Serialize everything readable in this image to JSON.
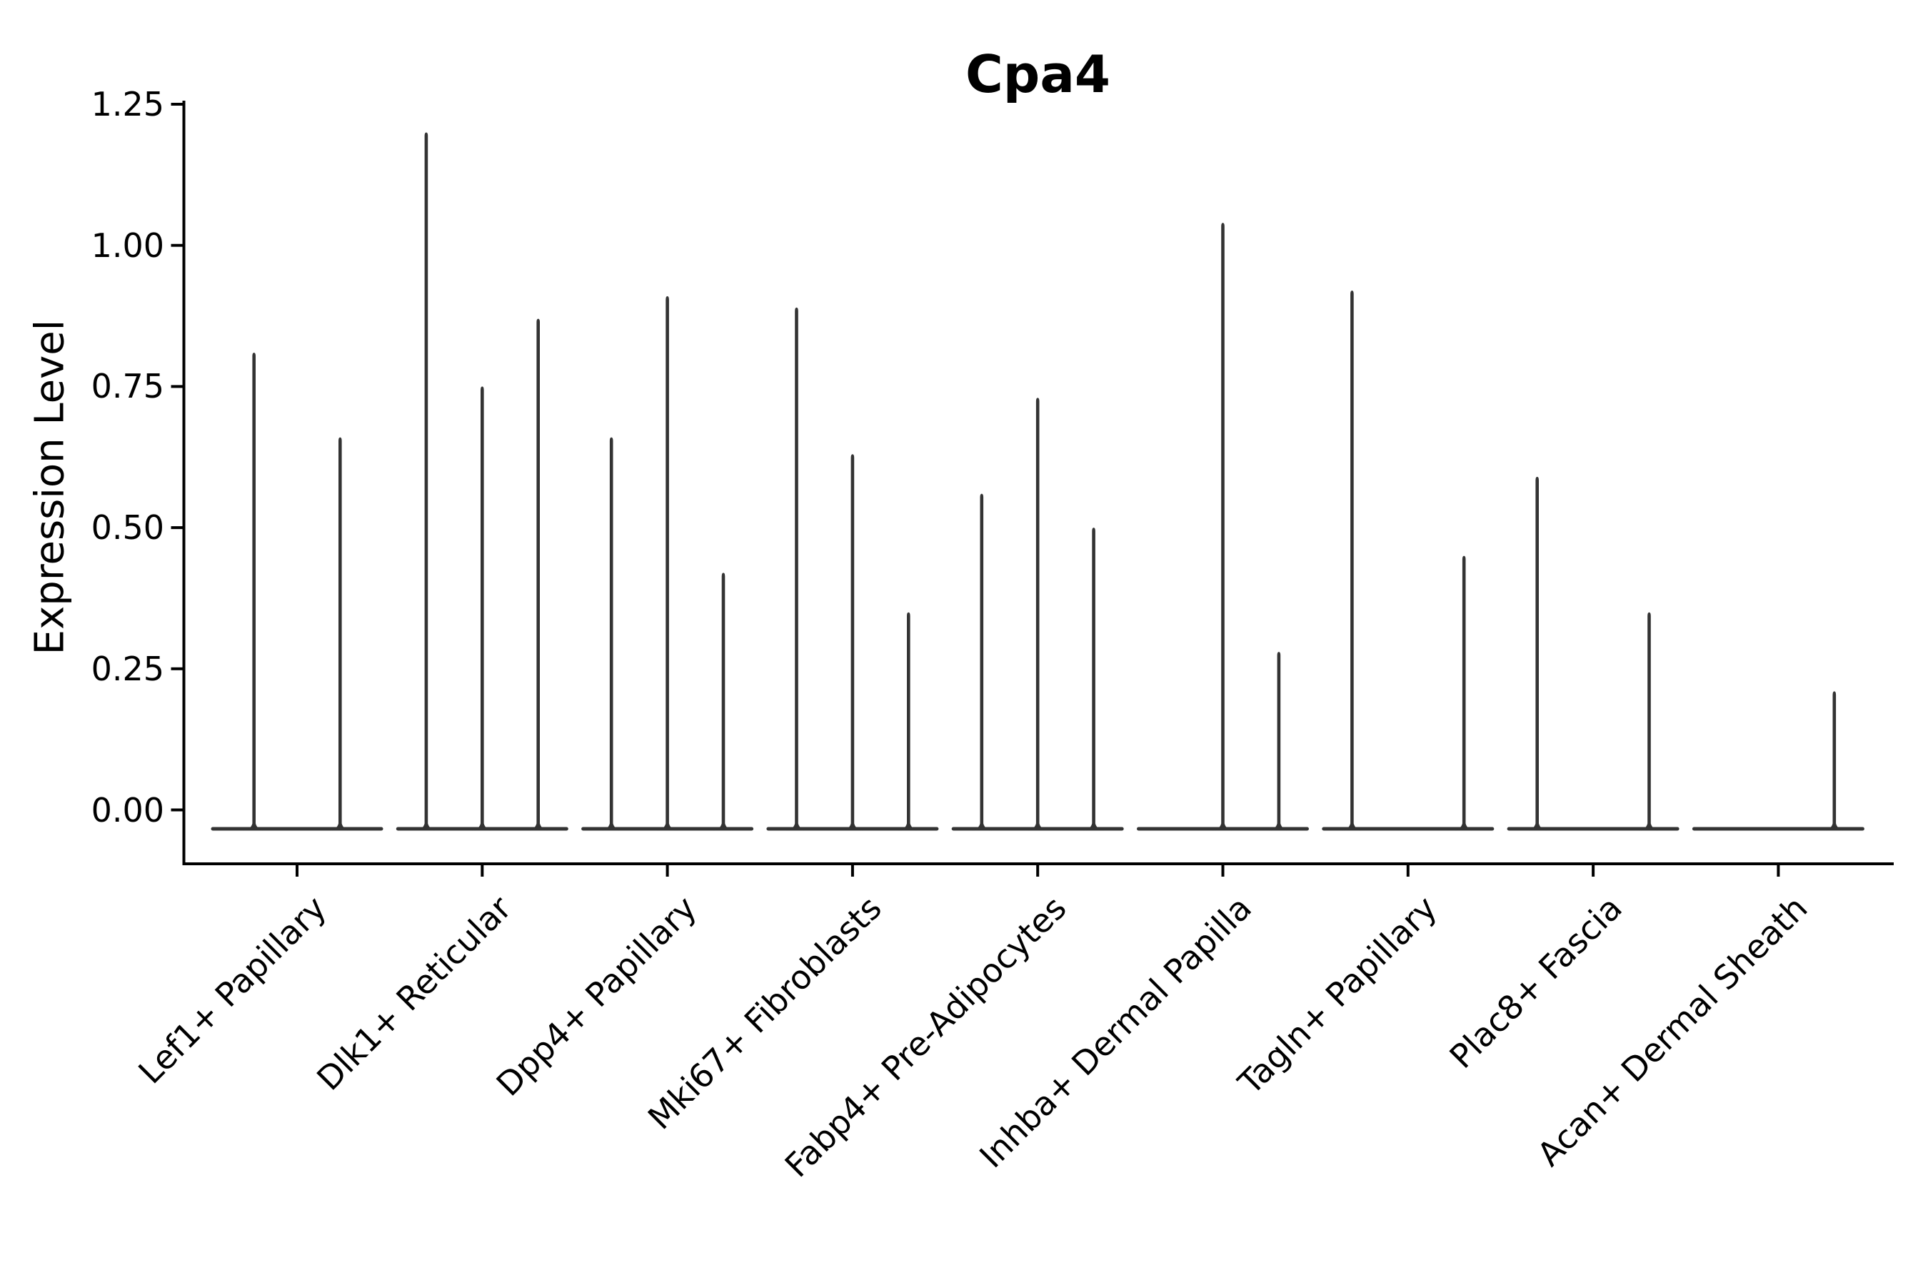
{
  "title": "Cpa4",
  "ylabel": "Expression Level",
  "chart_data": {
    "type": "violin",
    "title": "Cpa4",
    "xlabel": "",
    "ylabel": "Expression Level",
    "ylim": [
      -0.095,
      1.254
    ],
    "yticks": [
      0.0,
      0.25,
      0.5,
      0.75,
      1.0,
      1.25
    ],
    "ytick_labels": [
      "0.00",
      "0.25",
      "0.50",
      "0.75",
      "1.00",
      "1.25"
    ],
    "grid": false,
    "legend": null,
    "spines_visible": [
      "left",
      "bottom"
    ],
    "colors": {
      "violin": "#333333",
      "axis": "#000000",
      "text": "#000000",
      "background": "#ffffff"
    },
    "categories": [
      "Lef1+ Papillary",
      "Dlk1+ Reticular",
      "Dpp4+ Papillary",
      "Mki67+ Fibroblasts",
      "Fabp4+ Pre-Adipocytes",
      "Inhba+ Dermal Papilla",
      "Tagln+ Papillary",
      "Plac8+ Fascia",
      "Acan+ Dermal Sheath"
    ],
    "series": [
      {
        "category": "Lef1+ Papillary",
        "violin_max_values": [
          0.81,
          0.66
        ]
      },
      {
        "category": "Dlk1+ Reticular",
        "violin_max_values": [
          1.2,
          0.75,
          0.87
        ]
      },
      {
        "category": "Dpp4+ Papillary",
        "violin_max_values": [
          0.66,
          0.91,
          0.42
        ]
      },
      {
        "category": "Mki67+ Fibroblasts",
        "violin_max_values": [
          0.89,
          0.63,
          0.35
        ]
      },
      {
        "category": "Fabp4+ Pre-Adipocytes",
        "violin_max_values": [
          0.56,
          0.73,
          0.5
        ]
      },
      {
        "category": "Inhba+ Dermal Papilla",
        "violin_max_values": [
          null,
          1.04,
          0.28
        ]
      },
      {
        "category": "Tagln+ Papillary",
        "violin_max_values": [
          0.92,
          null,
          0.45
        ]
      },
      {
        "category": "Plac8+ Fascia",
        "violin_max_values": [
          0.59,
          null,
          0.35
        ]
      },
      {
        "category": "Acan+ Dermal Sheath",
        "violin_max_values": [
          null,
          null,
          0.21
        ]
      }
    ]
  }
}
